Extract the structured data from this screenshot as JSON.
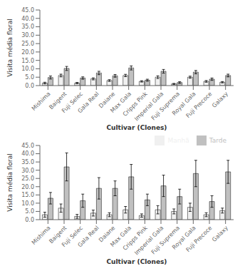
{
  "chart_data": [
    {
      "type": "bar",
      "categories": [
        "Mishima",
        "Baigent",
        "Fuji Selec",
        "Gala Real",
        "Daiane",
        "Max Gala",
        "Cripps Pink",
        "Imperial Gala",
        "Fuji Suprema",
        "Royal Gala",
        "Fuji Precoce",
        "Galaxy"
      ],
      "series": [
        {
          "color": "#f0f0f0",
          "values": [
            1.5,
            6.0,
            1.5,
            4.0,
            3.0,
            6.0,
            2.5,
            5.0,
            1.0,
            5.0,
            2.5,
            2.0
          ],
          "errors": [
            0.5,
            0.8,
            0.4,
            0.6,
            0.5,
            0.7,
            0.4,
            0.8,
            0.3,
            0.6,
            0.5,
            0.4
          ]
        },
        {
          "color": "#c0c0c0",
          "values": [
            4.8,
            10.2,
            4.5,
            7.5,
            5.8,
            10.5,
            3.2,
            8.5,
            1.8,
            8.0,
            3.8,
            6.0
          ],
          "errors": [
            0.9,
            1.2,
            0.7,
            1.0,
            0.8,
            1.2,
            0.6,
            1.1,
            0.5,
            1.0,
            0.7,
            0.8
          ]
        }
      ],
      "xlabel": "Cultivar (Clones)",
      "ylabel": "Visita média floral",
      "ylim": [
        0,
        45.0
      ],
      "yticks": [
        {
          "value": 0,
          "label": "0.0"
        },
        {
          "value": 5,
          "label": "5.0"
        },
        {
          "value": 10,
          "label": "10.0"
        },
        {
          "value": 15,
          "label": "15.0"
        },
        {
          "value": 20,
          "label": "20.0"
        },
        {
          "value": 25,
          "label": "25.0"
        },
        {
          "value": 30,
          "label": "30.0"
        },
        {
          "value": 35,
          "label": "35.0"
        },
        {
          "value": 40,
          "label": "40.0"
        },
        {
          "value": 45,
          "label": "45.0"
        }
      ]
    },
    {
      "type": "bar",
      "categories": [
        "Mishima",
        "Baigent",
        "Fuji Selec",
        "Gala Real",
        "Daiane",
        "Max Gala",
        "Cripps Pink",
        "Imperial Gala",
        "Fuji Suprema",
        "Royal Gala",
        "Fuji Precoce",
        "Galaxy"
      ],
      "series": [
        {
          "name": "Manhã",
          "color": "#f0f0f0",
          "values": [
            3.0,
            7.0,
            2.0,
            4.0,
            3.0,
            6.0,
            2.5,
            6.0,
            5.0,
            7.5,
            3.0,
            5.5
          ],
          "errors": [
            1.5,
            2.5,
            1.2,
            1.8,
            1.2,
            2.0,
            1.0,
            2.5,
            1.5,
            2.5,
            1.2,
            1.5
          ]
        },
        {
          "name": "Tarde",
          "color": "#c0c0c0",
          "values": [
            13.0,
            32.0,
            11.5,
            19.0,
            19.0,
            26.0,
            12.0,
            20.5,
            14.0,
            28.0,
            11.0,
            29.0
          ],
          "errors": [
            3.5,
            8.5,
            4.0,
            6.5,
            4.5,
            7.5,
            3.5,
            6.5,
            4.5,
            8.0,
            3.5,
            7.0
          ]
        }
      ],
      "xlabel": "Cultivar (Clones)",
      "ylabel": "Visita média floral",
      "ylim": [
        0,
        45.0
      ],
      "yticks": [
        {
          "value": 0,
          "label": "0.0"
        },
        {
          "value": 5,
          "label": "5.0"
        },
        {
          "value": 10,
          "label": "10.0"
        },
        {
          "value": 15,
          "label": "15.0"
        },
        {
          "value": 20,
          "label": "20.0"
        },
        {
          "value": 25,
          "label": "25.0"
        },
        {
          "value": 30,
          "label": "30.0"
        },
        {
          "value": 35,
          "label": "35.0"
        },
        {
          "value": 40,
          "label": "40.0"
        },
        {
          "value": 45,
          "label": "45.0"
        }
      ],
      "legend": "upper right"
    }
  ]
}
